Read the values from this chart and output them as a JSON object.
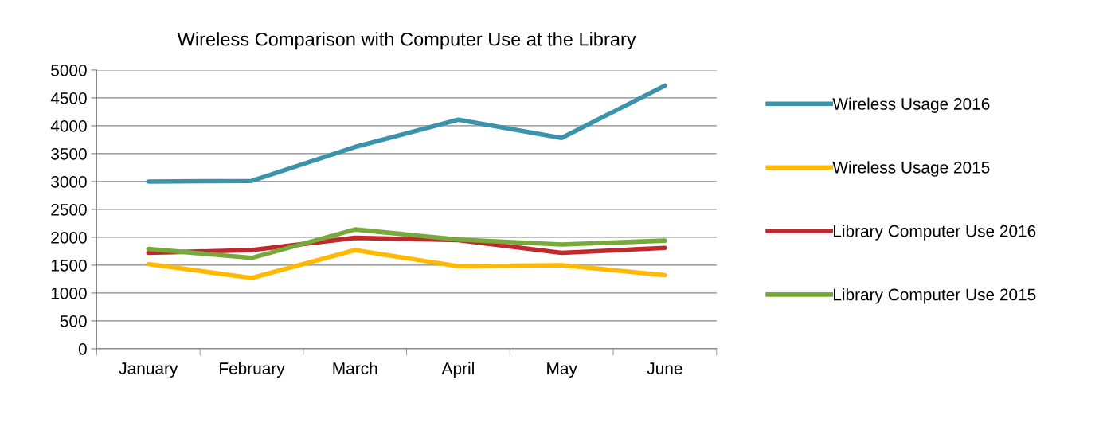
{
  "chart_data": {
    "type": "line",
    "title": "Wireless Comparison with Computer Use at the Library",
    "categories": [
      "January",
      "February",
      "March",
      "April",
      "May",
      "June"
    ],
    "series": [
      {
        "name": "Wireless Usage 2016",
        "color": "#3a93ab",
        "values": [
          3000,
          3010,
          3620,
          4110,
          3780,
          4720
        ]
      },
      {
        "name": "Wireless Usage 2015",
        "color": "#ffb900",
        "values": [
          1520,
          1270,
          1770,
          1480,
          1500,
          1320
        ]
      },
      {
        "name": "Library Computer Use 2016",
        "color": "#c0282d",
        "values": [
          1720,
          1770,
          1990,
          1950,
          1720,
          1810
        ]
      },
      {
        "name": "Library Computer Use 2015",
        "color": "#77a83a",
        "values": [
          1790,
          1630,
          2140,
          1960,
          1870,
          1940
        ]
      }
    ],
    "ylim": [
      0,
      5000
    ],
    "yticks": [
      0,
      500,
      1000,
      1500,
      2000,
      2500,
      3000,
      3500,
      4000,
      4500,
      5000
    ],
    "grid": "y",
    "legend": "right",
    "marker": "none",
    "line_style": "solid"
  }
}
